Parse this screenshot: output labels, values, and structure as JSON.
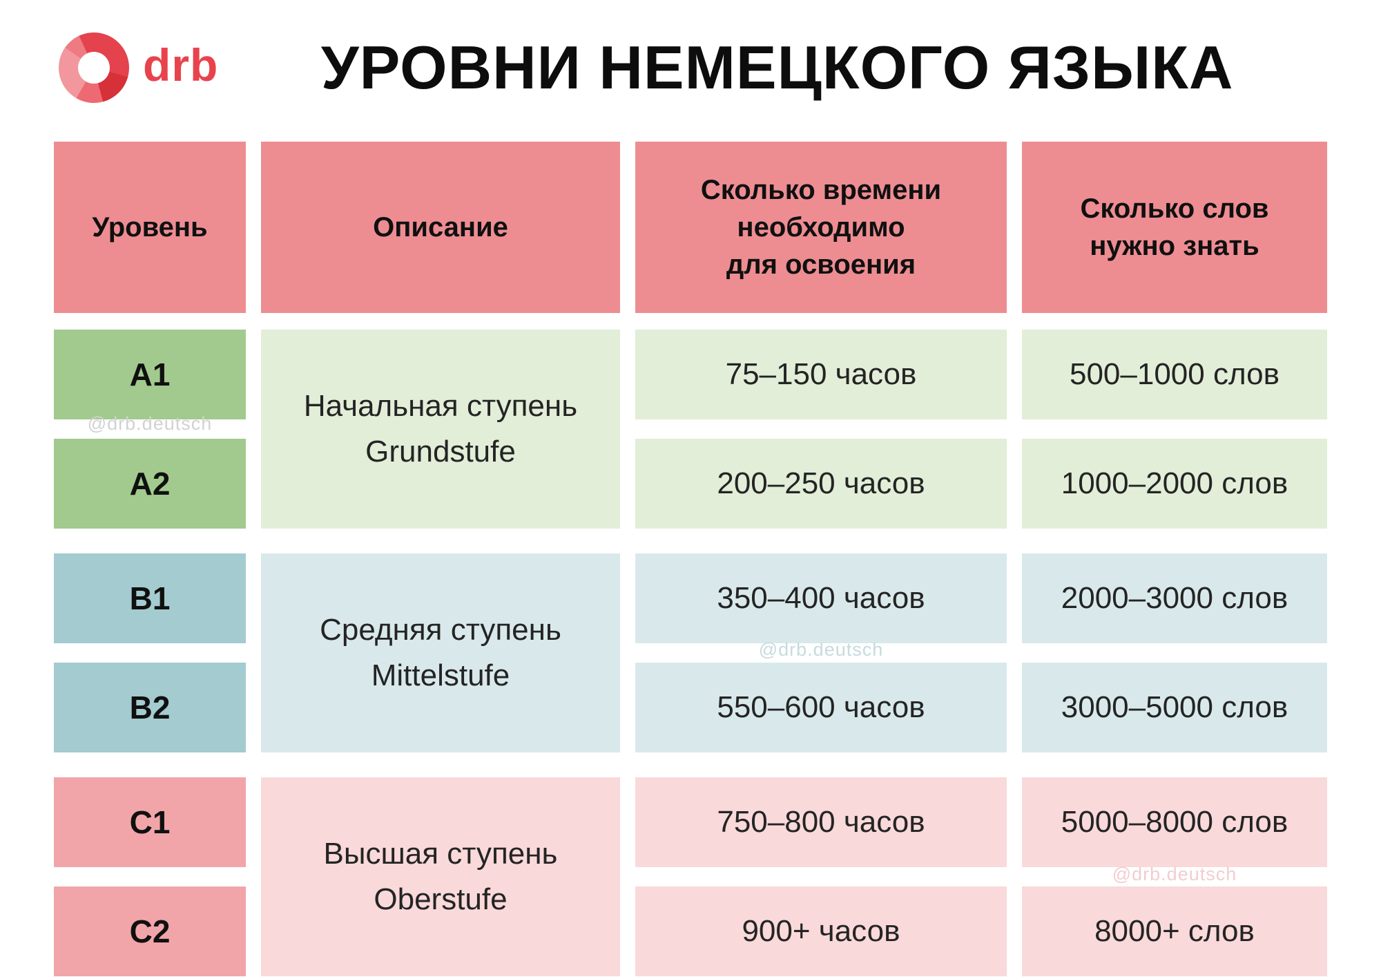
{
  "brand": {
    "name": "drb"
  },
  "title": "УРОВНИ НЕМЕЦКОГО ЯЗЫКА",
  "watermark": "@drb.deutsch",
  "palette": {
    "header_bg": "#ed8d92",
    "group_a_level_bg": "#a2ca8e",
    "group_a_light_bg": "#e2eed8",
    "group_b_level_bg": "#a3cbd0",
    "group_b_light_bg": "#d9e9eb",
    "group_c_level_bg": "#f2a5a9",
    "group_c_light_bg": "#f9d9da",
    "brand_red": "#e8434d",
    "title_color": "#0d0d0d",
    "text_dark": "#242424"
  },
  "table": {
    "headers": {
      "level": "Уровень",
      "description": "Описание",
      "hours": "Сколько времени\nнеобходимо\nдля освоения",
      "words": "Сколько слов\nнужно знать"
    },
    "groups": [
      {
        "stage_ru": "Начальная ступень",
        "stage_de": "Grundstufe",
        "rows": [
          {
            "level": "A1",
            "hours": "75–150 часов",
            "words": "500–1000 слов"
          },
          {
            "level": "A2",
            "hours": "200–250 часов",
            "words": "1000–2000 слов"
          }
        ]
      },
      {
        "stage_ru": "Средняя ступень",
        "stage_de": "Mittelstufe",
        "rows": [
          {
            "level": "B1",
            "hours": "350–400 часов",
            "words": "2000–3000 слов"
          },
          {
            "level": "B2",
            "hours": "550–600 часов",
            "words": "3000–5000 слов"
          }
        ]
      },
      {
        "stage_ru": "Высшая ступень",
        "stage_de": "Oberstufe",
        "rows": [
          {
            "level": "C1",
            "hours": "750–800 часов",
            "words": "5000–8000 слов"
          },
          {
            "level": "C2",
            "hours": "900+ часов",
            "words": "8000+ слов"
          }
        ]
      }
    ]
  },
  "chart_data": {
    "type": "table",
    "title": "УРОВНИ НЕМЕЦКОГО ЯЗЫКА",
    "columns": [
      "Уровень",
      "Описание",
      "Сколько времени необходимо для освоения",
      "Сколько слов нужно знать"
    ],
    "rows": [
      [
        "A1",
        "Начальная ступень Grundstufe",
        "75–150 часов",
        "500–1000 слов"
      ],
      [
        "A2",
        "Начальная ступень Grundstufe",
        "200–250 часов",
        "1000–2000 слов"
      ],
      [
        "B1",
        "Средняя ступень Mittelstufe",
        "350–400 часов",
        "2000–3000 слов"
      ],
      [
        "B2",
        "Средняя ступень Mittelstufe",
        "550–600 часов",
        "3000–5000 слов"
      ],
      [
        "C1",
        "Высшая ступень Oberstufe",
        "750–800 часов",
        "5000–8000 слов"
      ],
      [
        "C2",
        "Высшая ступень Oberstufe",
        "900+ часов",
        "8000+ слов"
      ]
    ]
  }
}
